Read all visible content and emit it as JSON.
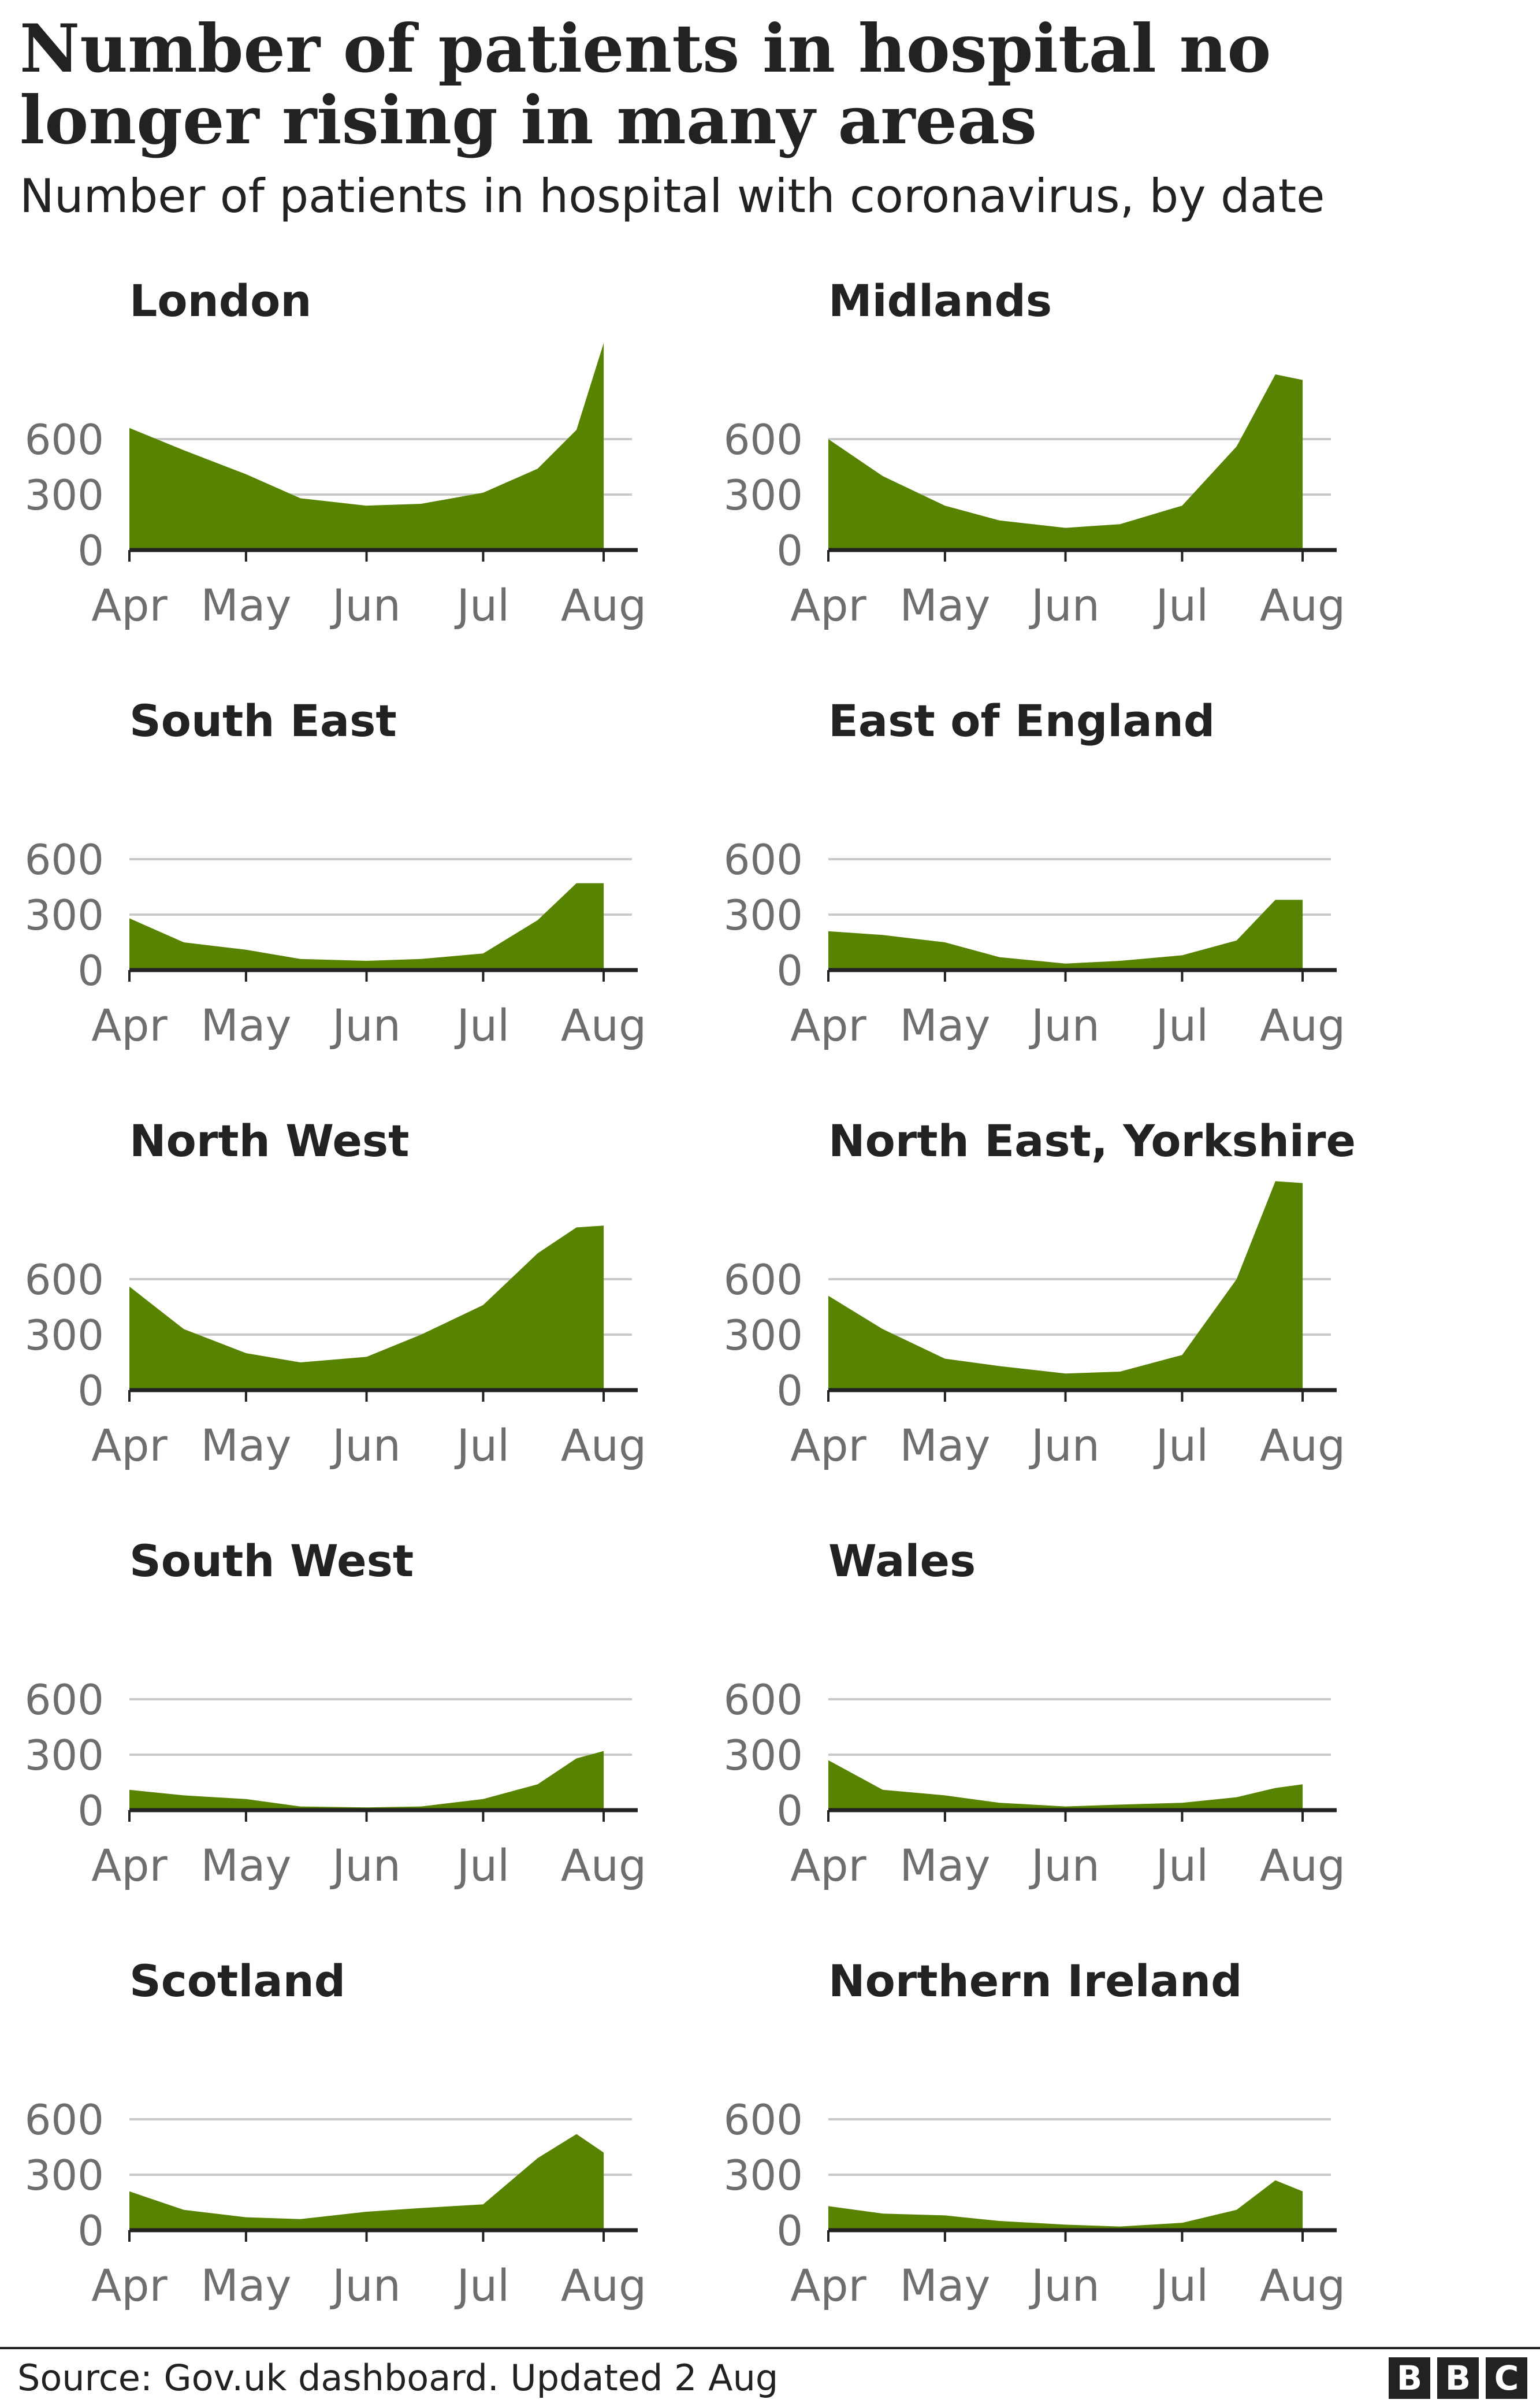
{
  "headline": "Number of patients in hospital no longer rising in many areas",
  "subhead": "Number of patients in hospital with coronavirus, by date",
  "source": "Source: Gov.uk dashboard. Updated 2 Aug",
  "logo": [
    "B",
    "B",
    "C"
  ],
  "colors": {
    "fill": "#588300",
    "text": "#222222",
    "tick_text": "#6e6e6e",
    "grid": "#c9c9c9",
    "axis": "#222222"
  },
  "chart_data": [
    {
      "type": "area",
      "title": "London",
      "x_ticks": [
        "Apr",
        "May",
        "Jun",
        "Jul",
        "Aug"
      ],
      "y_ticks": [
        0,
        300,
        600
      ],
      "ylim": [
        0,
        1100
      ],
      "x": [
        "Apr 1",
        "Apr 15",
        "May 1",
        "May 15",
        "Jun 1",
        "Jun 15",
        "Jul 1",
        "Jul 15",
        "Jul 25",
        "Aug 1"
      ],
      "values": [
        660,
        540,
        410,
        280,
        240,
        250,
        310,
        440,
        650,
        1120
      ]
    },
    {
      "type": "area",
      "title": "Midlands",
      "x_ticks": [
        "Apr",
        "May",
        "Jun",
        "Jul",
        "Aug"
      ],
      "y_ticks": [
        0,
        300,
        600
      ],
      "ylim": [
        0,
        1100
      ],
      "x": [
        "Apr 1",
        "Apr 15",
        "May 1",
        "May 15",
        "Jun 1",
        "Jun 15",
        "Jul 1",
        "Jul 15",
        "Jul 25",
        "Aug 1"
      ],
      "values": [
        600,
        400,
        240,
        160,
        120,
        140,
        240,
        560,
        950,
        920
      ]
    },
    {
      "type": "area",
      "title": "South East",
      "x_ticks": [
        "Apr",
        "May",
        "Jun",
        "Jul",
        "Aug"
      ],
      "y_ticks": [
        0,
        300,
        600
      ],
      "ylim": [
        0,
        1100
      ],
      "x": [
        "Apr 1",
        "Apr 15",
        "May 1",
        "May 15",
        "Jun 1",
        "Jun 15",
        "Jul 1",
        "Jul 15",
        "Jul 25",
        "Aug 1"
      ],
      "values": [
        280,
        150,
        110,
        60,
        50,
        60,
        90,
        270,
        470,
        470
      ]
    },
    {
      "type": "area",
      "title": "East of England",
      "x_ticks": [
        "Apr",
        "May",
        "Jun",
        "Jul",
        "Aug"
      ],
      "y_ticks": [
        0,
        300,
        600
      ],
      "ylim": [
        0,
        1100
      ],
      "x": [
        "Apr 1",
        "Apr 15",
        "May 1",
        "May 15",
        "Jun 1",
        "Jun 15",
        "Jul 1",
        "Jul 15",
        "Jul 25",
        "Aug 1"
      ],
      "values": [
        210,
        190,
        150,
        70,
        35,
        50,
        80,
        160,
        380,
        380
      ]
    },
    {
      "type": "area",
      "title": "North West",
      "x_ticks": [
        "Apr",
        "May",
        "Jun",
        "Jul",
        "Aug"
      ],
      "y_ticks": [
        0,
        300,
        600
      ],
      "ylim": [
        0,
        1100
      ],
      "x": [
        "Apr 1",
        "Apr 15",
        "May 1",
        "May 15",
        "Jun 1",
        "Jun 15",
        "Jul 1",
        "Jul 15",
        "Jul 25",
        "Aug 1"
      ],
      "values": [
        560,
        330,
        200,
        150,
        180,
        300,
        460,
        740,
        880,
        890
      ]
    },
    {
      "type": "area",
      "title": "North East, Yorkshire",
      "x_ticks": [
        "Apr",
        "May",
        "Jun",
        "Jul",
        "Aug"
      ],
      "y_ticks": [
        0,
        300,
        600
      ],
      "ylim": [
        0,
        1100
      ],
      "x": [
        "Apr 1",
        "Apr 15",
        "May 1",
        "May 15",
        "Jun 1",
        "Jun 15",
        "Jul 1",
        "Jul 15",
        "Jul 25",
        "Aug 1"
      ],
      "values": [
        510,
        330,
        170,
        130,
        90,
        100,
        190,
        600,
        1130,
        1120
      ]
    },
    {
      "type": "area",
      "title": "South West",
      "x_ticks": [
        "Apr",
        "May",
        "Jun",
        "Jul",
        "Aug"
      ],
      "y_ticks": [
        0,
        300,
        600
      ],
      "ylim": [
        0,
        1100
      ],
      "x": [
        "Apr 1",
        "Apr 15",
        "May 1",
        "May 15",
        "Jun 1",
        "Jun 15",
        "Jul 1",
        "Jul 15",
        "Jul 25",
        "Aug 1"
      ],
      "values": [
        110,
        80,
        60,
        20,
        15,
        20,
        60,
        140,
        280,
        320
      ]
    },
    {
      "type": "area",
      "title": "Wales",
      "x_ticks": [
        "Apr",
        "May",
        "Jun",
        "Jul",
        "Aug"
      ],
      "y_ticks": [
        0,
        300,
        600
      ],
      "ylim": [
        0,
        1100
      ],
      "x": [
        "Apr 1",
        "Apr 15",
        "May 1",
        "May 15",
        "Jun 1",
        "Jun 15",
        "Jul 1",
        "Jul 15",
        "Jul 25",
        "Aug 1"
      ],
      "values": [
        270,
        110,
        80,
        40,
        20,
        30,
        40,
        70,
        120,
        140
      ]
    },
    {
      "type": "area",
      "title": "Scotland",
      "x_ticks": [
        "Apr",
        "May",
        "Jun",
        "Jul",
        "Aug"
      ],
      "y_ticks": [
        0,
        300,
        600
      ],
      "ylim": [
        0,
        1100
      ],
      "x": [
        "Apr 1",
        "Apr 15",
        "May 1",
        "May 15",
        "Jun 1",
        "Jun 15",
        "Jul 1",
        "Jul 15",
        "Jul 25",
        "Aug 1"
      ],
      "values": [
        210,
        110,
        70,
        60,
        100,
        120,
        140,
        390,
        520,
        420
      ]
    },
    {
      "type": "area",
      "title": "Northern Ireland",
      "x_ticks": [
        "Apr",
        "May",
        "Jun",
        "Jul",
        "Aug"
      ],
      "y_ticks": [
        0,
        300,
        600
      ],
      "ylim": [
        0,
        1100
      ],
      "x": [
        "Apr 1",
        "Apr 15",
        "May 1",
        "May 15",
        "Jun 1",
        "Jun 15",
        "Jul 1",
        "Jul 15",
        "Jul 25",
        "Aug 1"
      ],
      "values": [
        130,
        90,
        80,
        50,
        30,
        20,
        40,
        110,
        270,
        210
      ]
    }
  ]
}
